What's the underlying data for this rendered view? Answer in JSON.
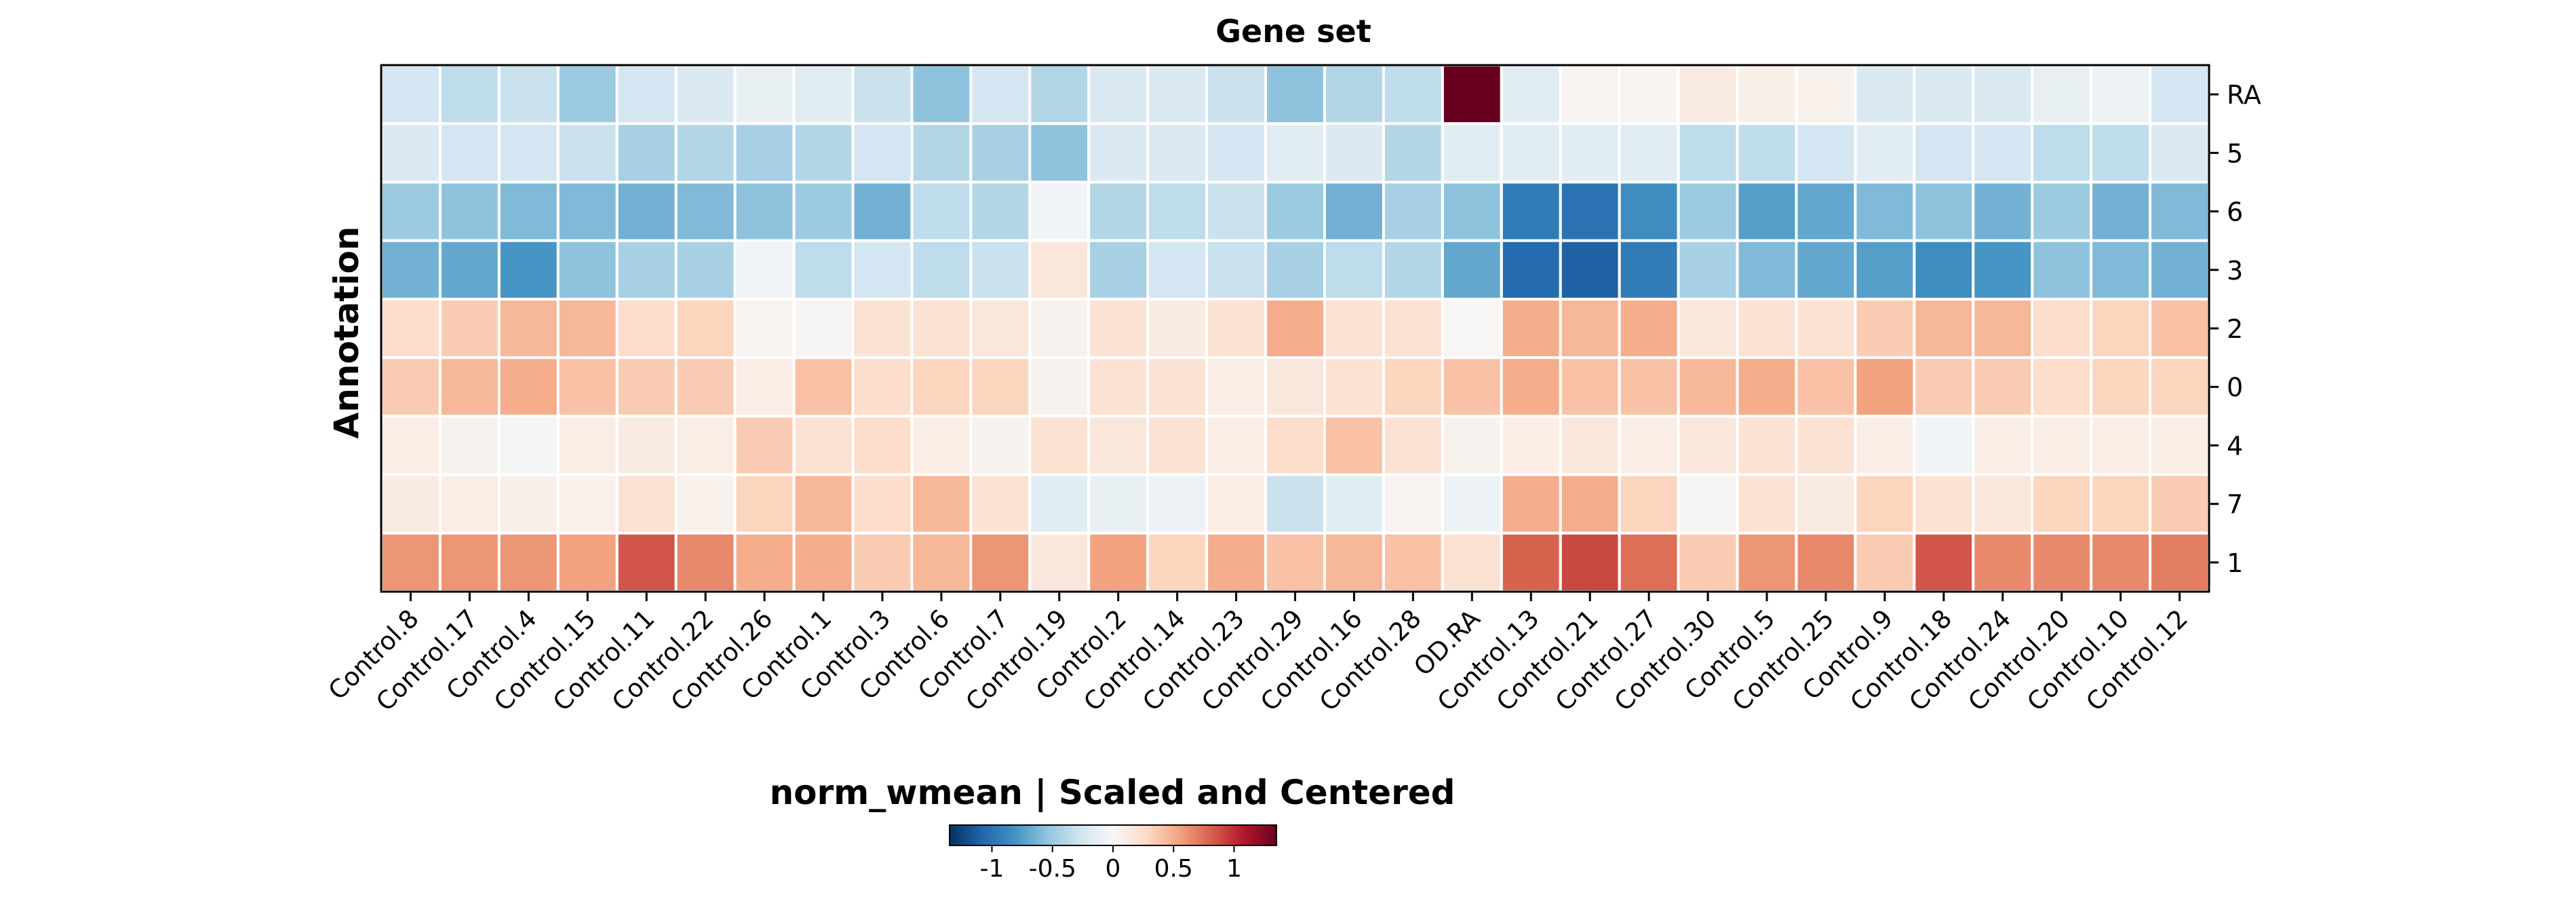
{
  "chart_data": {
    "type": "heatmap",
    "title": "Gene set",
    "ylabel": "Annotation",
    "xlabel": "",
    "x_categories": [
      "Control.8",
      "Control.17",
      "Control.4",
      "Control.15",
      "Control.11",
      "Control.22",
      "Control.26",
      "Control.1",
      "Control.3",
      "Control.6",
      "Control.7",
      "Control.19",
      "Control.2",
      "Control.14",
      "Control.23",
      "Control.29",
      "Control.16",
      "Control.28",
      "OD.RA",
      "Control.13",
      "Control.21",
      "Control.27",
      "Control.30",
      "Control.5",
      "Control.25",
      "Control.9",
      "Control.18",
      "Control.24",
      "Control.20",
      "Control.10",
      "Control.12"
    ],
    "y_categories": [
      "RA",
      "5",
      "6",
      "3",
      "2",
      "0",
      "4",
      "7",
      "1"
    ],
    "values": [
      [
        -0.25,
        -0.35,
        -0.3,
        -0.5,
        -0.25,
        -0.2,
        -0.1,
        -0.15,
        -0.3,
        -0.55,
        -0.25,
        -0.4,
        -0.2,
        -0.2,
        -0.3,
        -0.55,
        -0.4,
        -0.35,
        1.4,
        -0.15,
        0.04,
        0.03,
        0.12,
        0.08,
        0.06,
        -0.2,
        -0.2,
        -0.2,
        -0.1,
        -0.07,
        -0.25
      ],
      [
        -0.2,
        -0.25,
        -0.25,
        -0.3,
        -0.45,
        -0.4,
        -0.45,
        -0.4,
        -0.25,
        -0.4,
        -0.45,
        -0.55,
        -0.2,
        -0.2,
        -0.25,
        -0.15,
        -0.2,
        -0.4,
        -0.15,
        -0.15,
        -0.15,
        -0.15,
        -0.35,
        -0.35,
        -0.25,
        -0.15,
        -0.25,
        -0.25,
        -0.35,
        -0.35,
        -0.2
      ],
      [
        -0.5,
        -0.55,
        -0.6,
        -0.6,
        -0.65,
        -0.6,
        -0.55,
        -0.5,
        -0.65,
        -0.35,
        -0.4,
        -0.05,
        -0.4,
        -0.35,
        -0.3,
        -0.5,
        -0.65,
        -0.45,
        -0.55,
        -0.95,
        -1.0,
        -0.85,
        -0.5,
        -0.75,
        -0.7,
        -0.6,
        -0.55,
        -0.65,
        -0.5,
        -0.65,
        -0.6
      ],
      [
        -0.65,
        -0.7,
        -0.8,
        -0.55,
        -0.45,
        -0.45,
        -0.05,
        -0.35,
        -0.25,
        -0.35,
        -0.3,
        0.15,
        -0.45,
        -0.25,
        -0.3,
        -0.45,
        -0.35,
        -0.4,
        -0.7,
        -1.05,
        -1.1,
        -0.95,
        -0.45,
        -0.6,
        -0.7,
        -0.75,
        -0.85,
        -0.8,
        -0.55,
        -0.6,
        -0.65
      ],
      [
        0.25,
        0.35,
        0.45,
        0.45,
        0.25,
        0.3,
        0.04,
        0.02,
        0.2,
        0.2,
        0.15,
        0.05,
        0.2,
        0.12,
        0.2,
        0.5,
        0.2,
        0.2,
        0.01,
        0.5,
        0.45,
        0.5,
        0.15,
        0.2,
        0.2,
        0.35,
        0.45,
        0.45,
        0.25,
        0.3,
        0.4
      ],
      [
        0.35,
        0.45,
        0.5,
        0.4,
        0.35,
        0.35,
        0.1,
        0.4,
        0.25,
        0.3,
        0.3,
        0.05,
        0.2,
        0.2,
        0.1,
        0.15,
        0.2,
        0.3,
        0.4,
        0.5,
        0.4,
        0.4,
        0.45,
        0.5,
        0.4,
        0.55,
        0.35,
        0.35,
        0.25,
        0.3,
        0.3
      ],
      [
        0.1,
        0.05,
        -0.02,
        0.1,
        0.12,
        0.1,
        0.35,
        0.2,
        0.25,
        0.1,
        0.05,
        0.2,
        0.15,
        0.2,
        0.1,
        0.25,
        0.4,
        0.2,
        0.05,
        0.1,
        0.15,
        0.1,
        0.15,
        0.2,
        0.2,
        0.1,
        -0.05,
        0.1,
        0.1,
        0.1,
        0.1
      ],
      [
        0.12,
        0.1,
        0.08,
        0.07,
        0.2,
        0.06,
        0.3,
        0.45,
        0.25,
        0.45,
        0.2,
        -0.15,
        -0.1,
        -0.08,
        0.1,
        -0.3,
        -0.15,
        0.04,
        -0.08,
        0.5,
        0.5,
        0.3,
        0.02,
        0.2,
        0.12,
        0.3,
        0.2,
        0.15,
        0.3,
        0.3,
        0.35
      ],
      [
        0.6,
        0.6,
        0.6,
        0.55,
        0.85,
        0.65,
        0.5,
        0.5,
        0.35,
        0.45,
        0.6,
        0.15,
        0.55,
        0.3,
        0.5,
        0.4,
        0.45,
        0.4,
        0.2,
        0.8,
        0.9,
        0.75,
        0.35,
        0.6,
        0.65,
        0.35,
        0.85,
        0.65,
        0.65,
        0.65,
        0.7
      ]
    ],
    "colorbar": {
      "title": "norm_wmean | Scaled and Centered",
      "ticks": [
        -1,
        -0.5,
        0,
        0.5,
        1
      ],
      "tick_labels": [
        "-1",
        "-0.5",
        "0",
        "0.5",
        "1"
      ],
      "range": [
        -1.35,
        1.35
      ],
      "colormap": [
        "#053061",
        "#2166ac",
        "#4393c3",
        "#92c5de",
        "#d1e5f0",
        "#f7f7f7",
        "#fddbc7",
        "#f4a582",
        "#d6604d",
        "#b2182b",
        "#67001f"
      ]
    }
  }
}
